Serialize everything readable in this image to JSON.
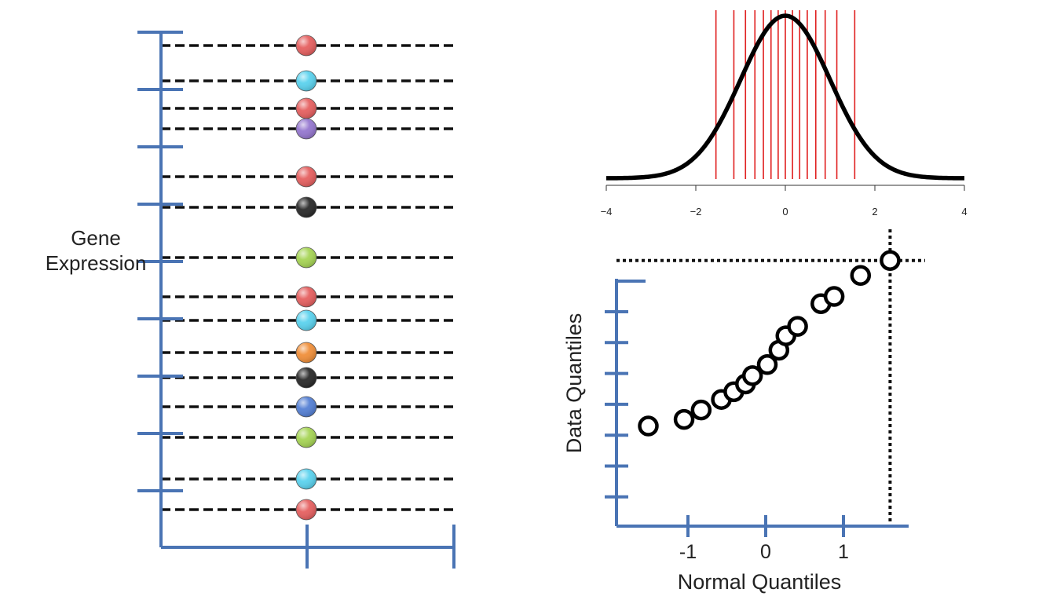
{
  "colors": {
    "axis_blue": "#4a74b4",
    "dashed_line": "#111111",
    "red_marker_line": "#e02020",
    "curve": "#000000",
    "dot_red": "#e56060",
    "dot_cyan": "#5bd2ee",
    "dot_purple": "#9577cf",
    "dot_black": "#2a2a2a",
    "dot_green": "#a6d455",
    "dot_orange": "#f08f3a",
    "dot_blue": "#5580d4"
  },
  "chart_data": [
    {
      "type": "scatter",
      "ylabel": "Gene Expression",
      "xlabel": "",
      "grid": false,
      "y_tick_count": 9,
      "x_tick_count": 2,
      "points": [
        {
          "rank": 1,
          "color": "red"
        },
        {
          "rank": 2,
          "color": "cyan"
        },
        {
          "rank": 3,
          "color": "red"
        },
        {
          "rank": 4,
          "color": "purple"
        },
        {
          "rank": 5,
          "color": "red"
        },
        {
          "rank": 6,
          "color": "black"
        },
        {
          "rank": 7,
          "color": "green"
        },
        {
          "rank": 8,
          "color": "red"
        },
        {
          "rank": 9,
          "color": "cyan"
        },
        {
          "rank": 10,
          "color": "orange"
        },
        {
          "rank": 11,
          "color": "black"
        },
        {
          "rank": 12,
          "color": "blue"
        },
        {
          "rank": 13,
          "color": "green"
        },
        {
          "rank": 14,
          "color": "cyan"
        },
        {
          "rank": 15,
          "color": "red"
        }
      ]
    },
    {
      "type": "line",
      "title": "",
      "xlabel": "",
      "ylabel": "",
      "xlim": [
        -4,
        4
      ],
      "x_ticks": [
        "-4",
        "-2",
        "0",
        "2",
        "4"
      ],
      "curve": "standard normal density",
      "quantile_lines": [
        -1.55,
        -1.15,
        -0.89,
        -0.68,
        -0.49,
        -0.32,
        -0.16,
        0.0,
        0.16,
        0.32,
        0.49,
        0.68,
        0.89,
        1.15,
        1.55
      ]
    },
    {
      "type": "scatter",
      "xlabel": "Normal Quantiles",
      "ylabel": "Data Quantiles",
      "x_ticks": [
        "-1",
        "0",
        "1"
      ],
      "y_tick_count": 7,
      "grid": false,
      "x": [
        -1.51,
        -1.05,
        -0.83,
        -0.57,
        -0.41,
        -0.26,
        -0.17,
        0.02,
        0.17,
        0.26,
        0.41,
        0.71,
        0.88,
        1.22,
        1.6
      ],
      "y": [
        -0.66,
        -0.54,
        -0.37,
        -0.18,
        -0.04,
        0.1,
        0.25,
        0.45,
        0.71,
        0.97,
        1.14,
        1.55,
        1.68,
        2.06,
        2.33
      ]
    }
  ]
}
